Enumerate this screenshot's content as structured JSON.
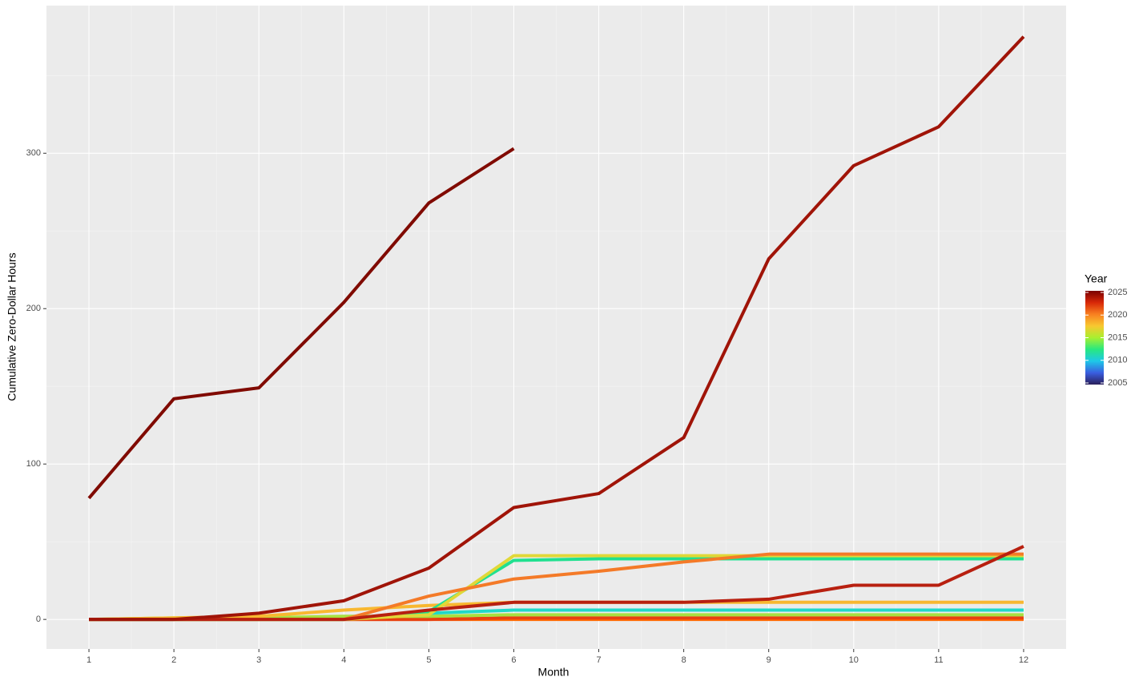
{
  "chart_data": {
    "type": "line",
    "x_label": "Month",
    "y_label": "Cumulative Zero-Dollar Hours",
    "x": [
      1,
      2,
      3,
      4,
      5,
      6,
      7,
      8,
      9,
      10,
      11,
      12
    ],
    "xlim": [
      0.5,
      12.5
    ],
    "xticks": [
      1,
      2,
      3,
      4,
      5,
      6,
      7,
      8,
      9,
      10,
      11,
      12
    ],
    "ylim": [
      -19,
      395
    ],
    "yticks": [
      0,
      100,
      200,
      300
    ],
    "grid": true,
    "legend": {
      "title": "Year",
      "position": "right",
      "limits": [
        2005,
        2025
      ],
      "ticks": [
        2005,
        2010,
        2015,
        2020,
        2025
      ],
      "colors": [
        "#2a1f5a",
        "#3a5ee0",
        "#1ec8e8",
        "#28e880",
        "#a8f030",
        "#f8c830",
        "#f88020",
        "#d82808",
        "#7a0000"
      ]
    },
    "series": [
      {
        "color": "#ff6a00",
        "values": [
          0,
          0,
          0,
          0,
          0,
          0,
          0,
          0,
          0,
          0,
          0,
          0
        ]
      },
      {
        "color": "#e84010",
        "values": [
          0,
          0,
          0,
          0,
          0,
          1,
          1,
          1,
          1,
          1,
          1,
          1
        ]
      },
      {
        "color": "#a8e040",
        "values": [
          0,
          1,
          1,
          2,
          2,
          3,
          3,
          3,
          3,
          3,
          3,
          3
        ]
      },
      {
        "color": "#20d8c8",
        "values": [
          0,
          0,
          0,
          0,
          4,
          6,
          6,
          6,
          6,
          6,
          6,
          6
        ]
      },
      {
        "color": "#f8b830",
        "values": [
          0,
          1,
          2,
          6,
          9,
          11,
          11,
          11,
          11,
          11,
          11,
          11
        ]
      },
      {
        "color": "#20e090",
        "values": [
          0,
          0,
          0,
          0,
          5,
          38,
          39,
          39,
          39,
          39,
          39,
          39
        ]
      },
      {
        "color": "#e0d838",
        "values": [
          0,
          0,
          0,
          0,
          3,
          41,
          41,
          41,
          41,
          41,
          41,
          41
        ]
      },
      {
        "color": "#f47a28",
        "values": [
          0,
          0,
          0,
          0,
          15,
          26,
          31,
          37,
          42,
          42,
          42,
          42
        ]
      },
      {
        "color": "#b82010",
        "values": [
          0,
          0,
          0,
          0,
          6,
          11,
          11,
          11,
          13,
          22,
          22,
          47
        ]
      },
      {
        "color": "#a01408",
        "values": [
          0,
          0,
          4,
          12,
          33,
          72,
          81,
          117,
          232,
          292,
          317,
          375
        ]
      },
      {
        "color": "#800a00",
        "values": [
          78,
          142,
          149,
          204,
          268,
          303,
          null,
          null,
          null,
          null,
          null,
          null
        ]
      }
    ]
  }
}
